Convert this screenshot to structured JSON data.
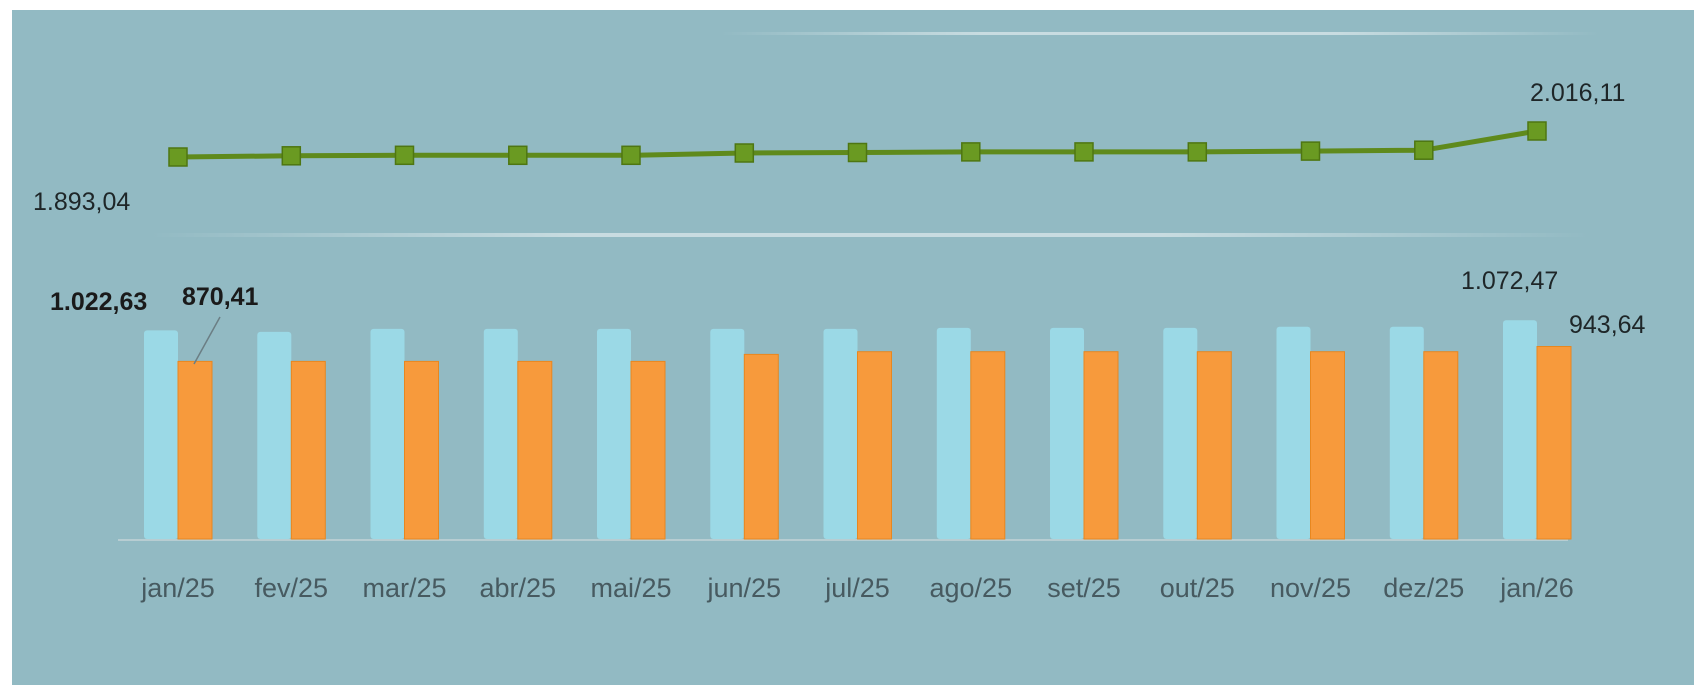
{
  "chart_data": {
    "type": "bar",
    "categories": [
      "jan/25",
      "fev/25",
      "mar/25",
      "abr/25",
      "mai/25",
      "jun/25",
      "jul/25",
      "ago/25",
      "set/25",
      "out/25",
      "nov/25",
      "dez/25",
      "jan/26"
    ],
    "series": [
      {
        "type": "line",
        "color": "#5f8a1c",
        "marker": "square",
        "values": [
          1893.04,
          1898.5,
          1901.2,
          1901.2,
          1901.2,
          1912.0,
          1914.5,
          1917.0,
          1917.0,
          1917.0,
          1921.0,
          1925.0,
          2016.11
        ],
        "data_labels": [
          "1.893,04",
          "",
          "",
          "",
          "",
          "",
          "",
          "",
          "",
          "",
          "",
          "",
          "2.016,11"
        ]
      },
      {
        "type": "bar",
        "color": "#9bd9e6",
        "values": [
          1022.63,
          1015.0,
          1030.0,
          1030.0,
          1030.0,
          1030.0,
          1030.0,
          1035.0,
          1035.0,
          1035.0,
          1040.0,
          1040.0,
          1072.47
        ],
        "data_labels": [
          "1.022,63",
          "",
          "",
          "",
          "",
          "",
          "",
          "",
          "",
          "",
          "",
          "",
          "1.072,47"
        ]
      },
      {
        "type": "bar",
        "color": "#f79a3c",
        "values": [
          870.41,
          870.41,
          870.41,
          870.41,
          870.41,
          905.0,
          918.0,
          918.0,
          918.0,
          918.0,
          918.0,
          918.0,
          943.64
        ],
        "data_labels": [
          "870,41",
          "",
          "",
          "",
          "",
          "",
          "",
          "",
          "",
          "",
          "",
          "",
          "943,64"
        ]
      }
    ],
    "background_color": "#92bac3",
    "legend": "none",
    "grid": false
  }
}
